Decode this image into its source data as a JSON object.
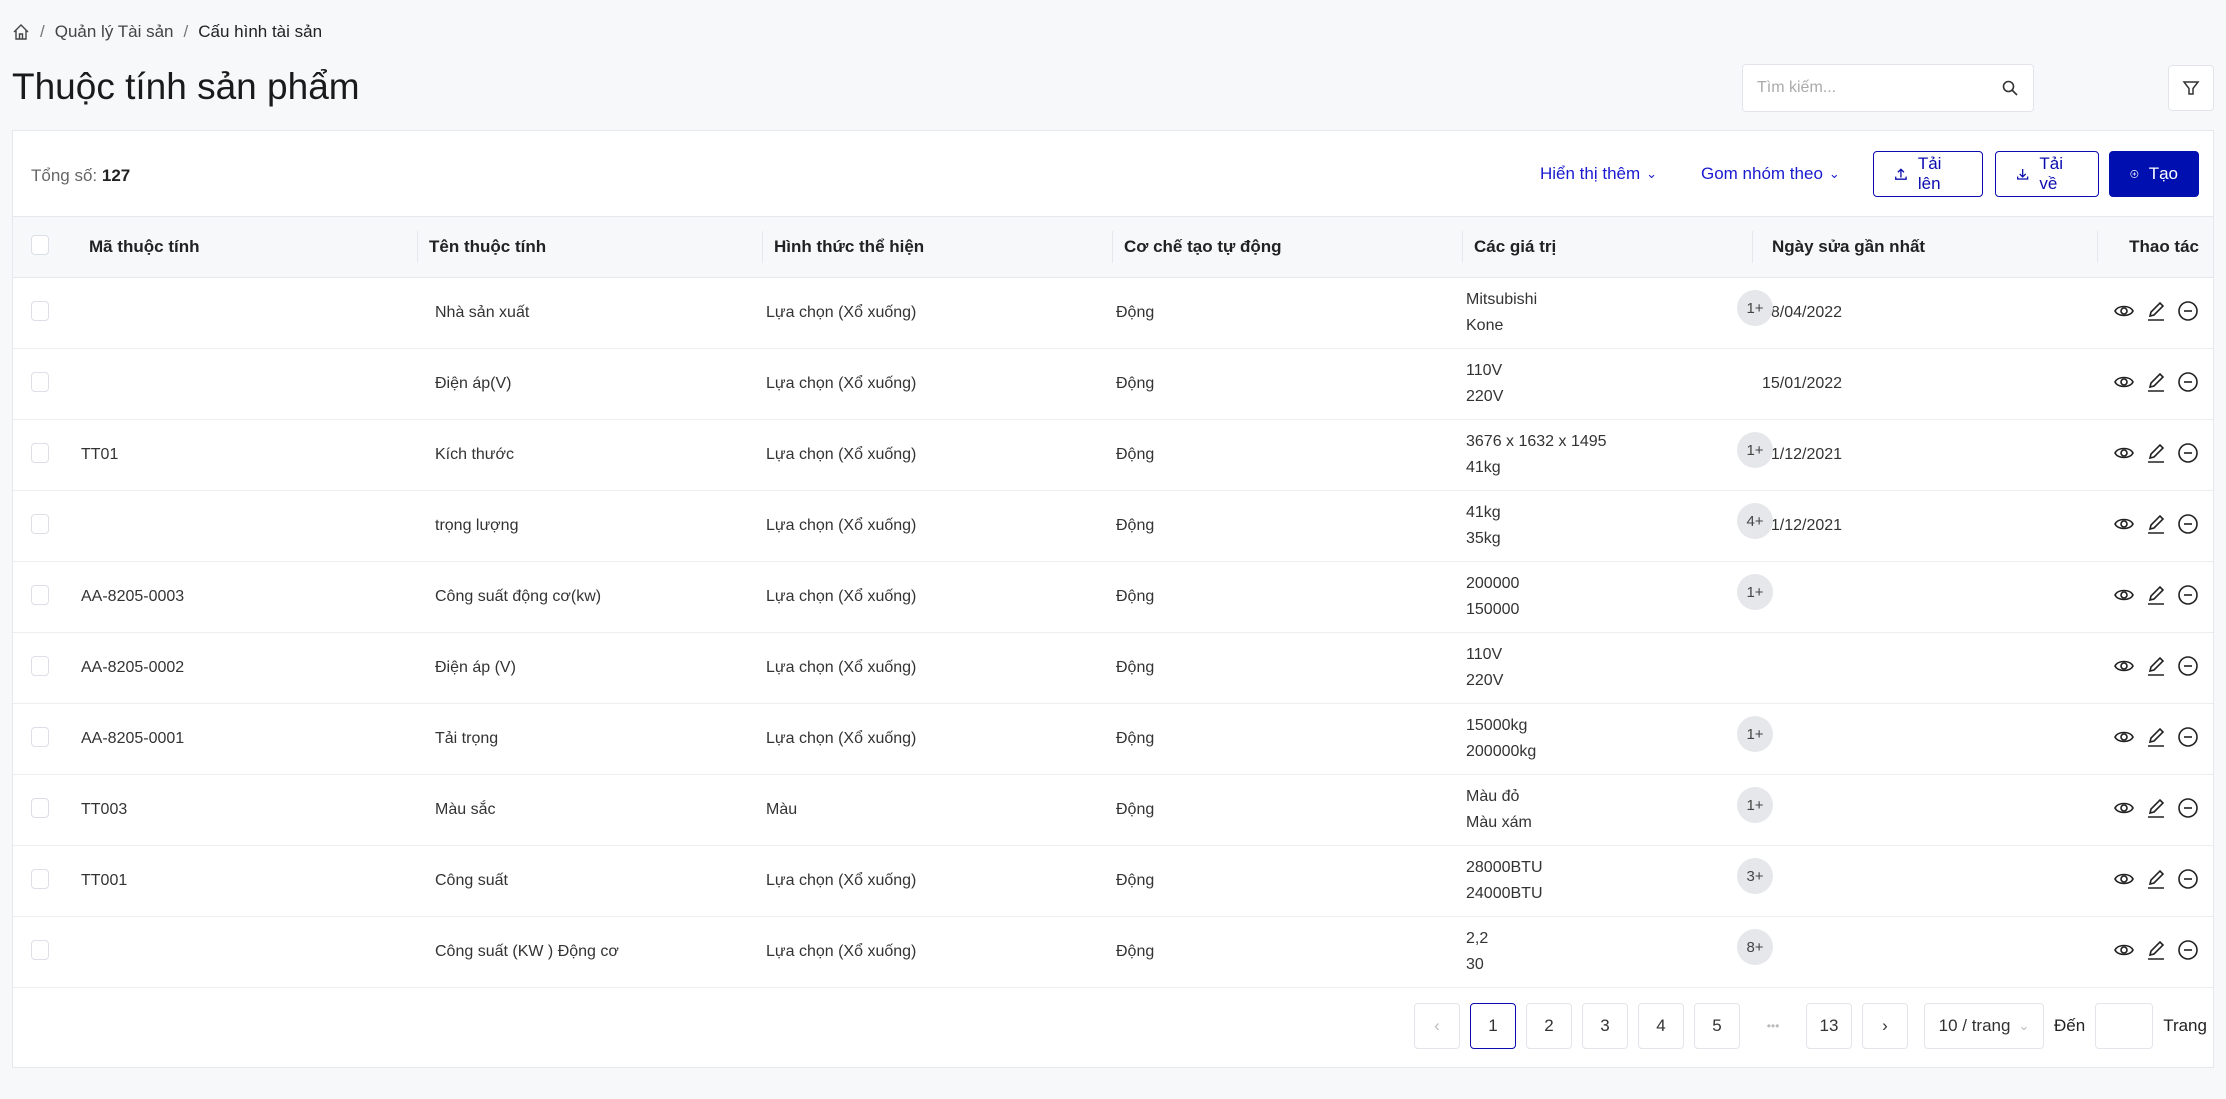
{
  "breadcrumb": {
    "items": [
      "Quản lý Tài sản",
      "Cấu hình tài sản"
    ]
  },
  "page_title": "Thuộc tính sản phẩm",
  "search": {
    "placeholder": "Tìm kiếm..."
  },
  "toolbar": {
    "total_label": "Tổng số:",
    "total": "127",
    "show_more": "Hiển thị thêm",
    "group_by": "Gom nhóm theo",
    "upload": "Tải lên",
    "download": "Tải về",
    "create": "Tạo"
  },
  "colors": {
    "primary": "#0010b0",
    "link": "#1a1ad0"
  },
  "table": {
    "headers": [
      "Mã thuộc tính",
      "Tên thuộc tính",
      "Hình thức thể hiện",
      "Cơ chế tạo tự động",
      "Các giá trị",
      "Ngày sửa gần nhất",
      "Thao tác"
    ],
    "rows": [
      {
        "code": "",
        "name": "Nhà sản xuất",
        "display": "Lựa chọn (Xổ xuống)",
        "mech": "Động",
        "v1": "Mitsubishi",
        "v2": "Kone",
        "more": "1+",
        "date": "08/04/2022"
      },
      {
        "code": "",
        "name": "Điện áp(V)",
        "display": "Lựa chọn (Xổ xuống)",
        "mech": "Động",
        "v1": "110V",
        "v2": "220V",
        "more": "",
        "date": "15/01/2022"
      },
      {
        "code": "TT01",
        "name": "Kích thước",
        "display": "Lựa chọn (Xổ xuống)",
        "mech": "Động",
        "v1": "3676 x 1632 x 1495",
        "v2": "41kg",
        "more": "1+",
        "date": "21/12/2021"
      },
      {
        "code": "",
        "name": "trọng lượng",
        "display": "Lựa chọn (Xổ xuống)",
        "mech": "Động",
        "v1": "41kg",
        "v2": "35kg",
        "more": "4+",
        "date": "01/12/2021"
      },
      {
        "code": "AA-8205-0003",
        "name": "Công suất động cơ(kw)",
        "display": "Lựa chọn (Xổ xuống)",
        "mech": "Động",
        "v1": "200000",
        "v2": "150000",
        "more": "1+",
        "date": ""
      },
      {
        "code": "AA-8205-0002",
        "name": "Điện áp (V)",
        "display": "Lựa chọn (Xổ xuống)",
        "mech": "Động",
        "v1": "110V",
        "v2": "220V",
        "more": "",
        "date": ""
      },
      {
        "code": "AA-8205-0001",
        "name": "Tải trọng",
        "display": "Lựa chọn (Xổ xuống)",
        "mech": "Động",
        "v1": "15000kg",
        "v2": "200000kg",
        "more": "1+",
        "date": ""
      },
      {
        "code": "TT003",
        "name": "Màu sắc",
        "display": "Màu",
        "mech": "Động",
        "v1": "Màu đỏ",
        "v2": "Màu xám",
        "more": "1+",
        "date": ""
      },
      {
        "code": "TT001",
        "name": "Công suất",
        "display": "Lựa chọn (Xổ xuống)",
        "mech": "Động",
        "v1": "28000BTU",
        "v2": "24000BTU",
        "more": "3+",
        "date": ""
      },
      {
        "code": "",
        "name": "Công suất (KW ) Động cơ",
        "display": "Lựa chọn (Xổ xuống)",
        "mech": "Động",
        "v1": "2,2",
        "v2": "30",
        "more": "8+",
        "date": ""
      }
    ]
  },
  "pagination": {
    "pages": [
      "1",
      "2",
      "3",
      "4",
      "5"
    ],
    "ellipsis": "•••",
    "last": "13",
    "current": "1",
    "page_size": "10 / trang",
    "goto_label": "Đến",
    "goto_value": "",
    "page_label": "Trang"
  }
}
